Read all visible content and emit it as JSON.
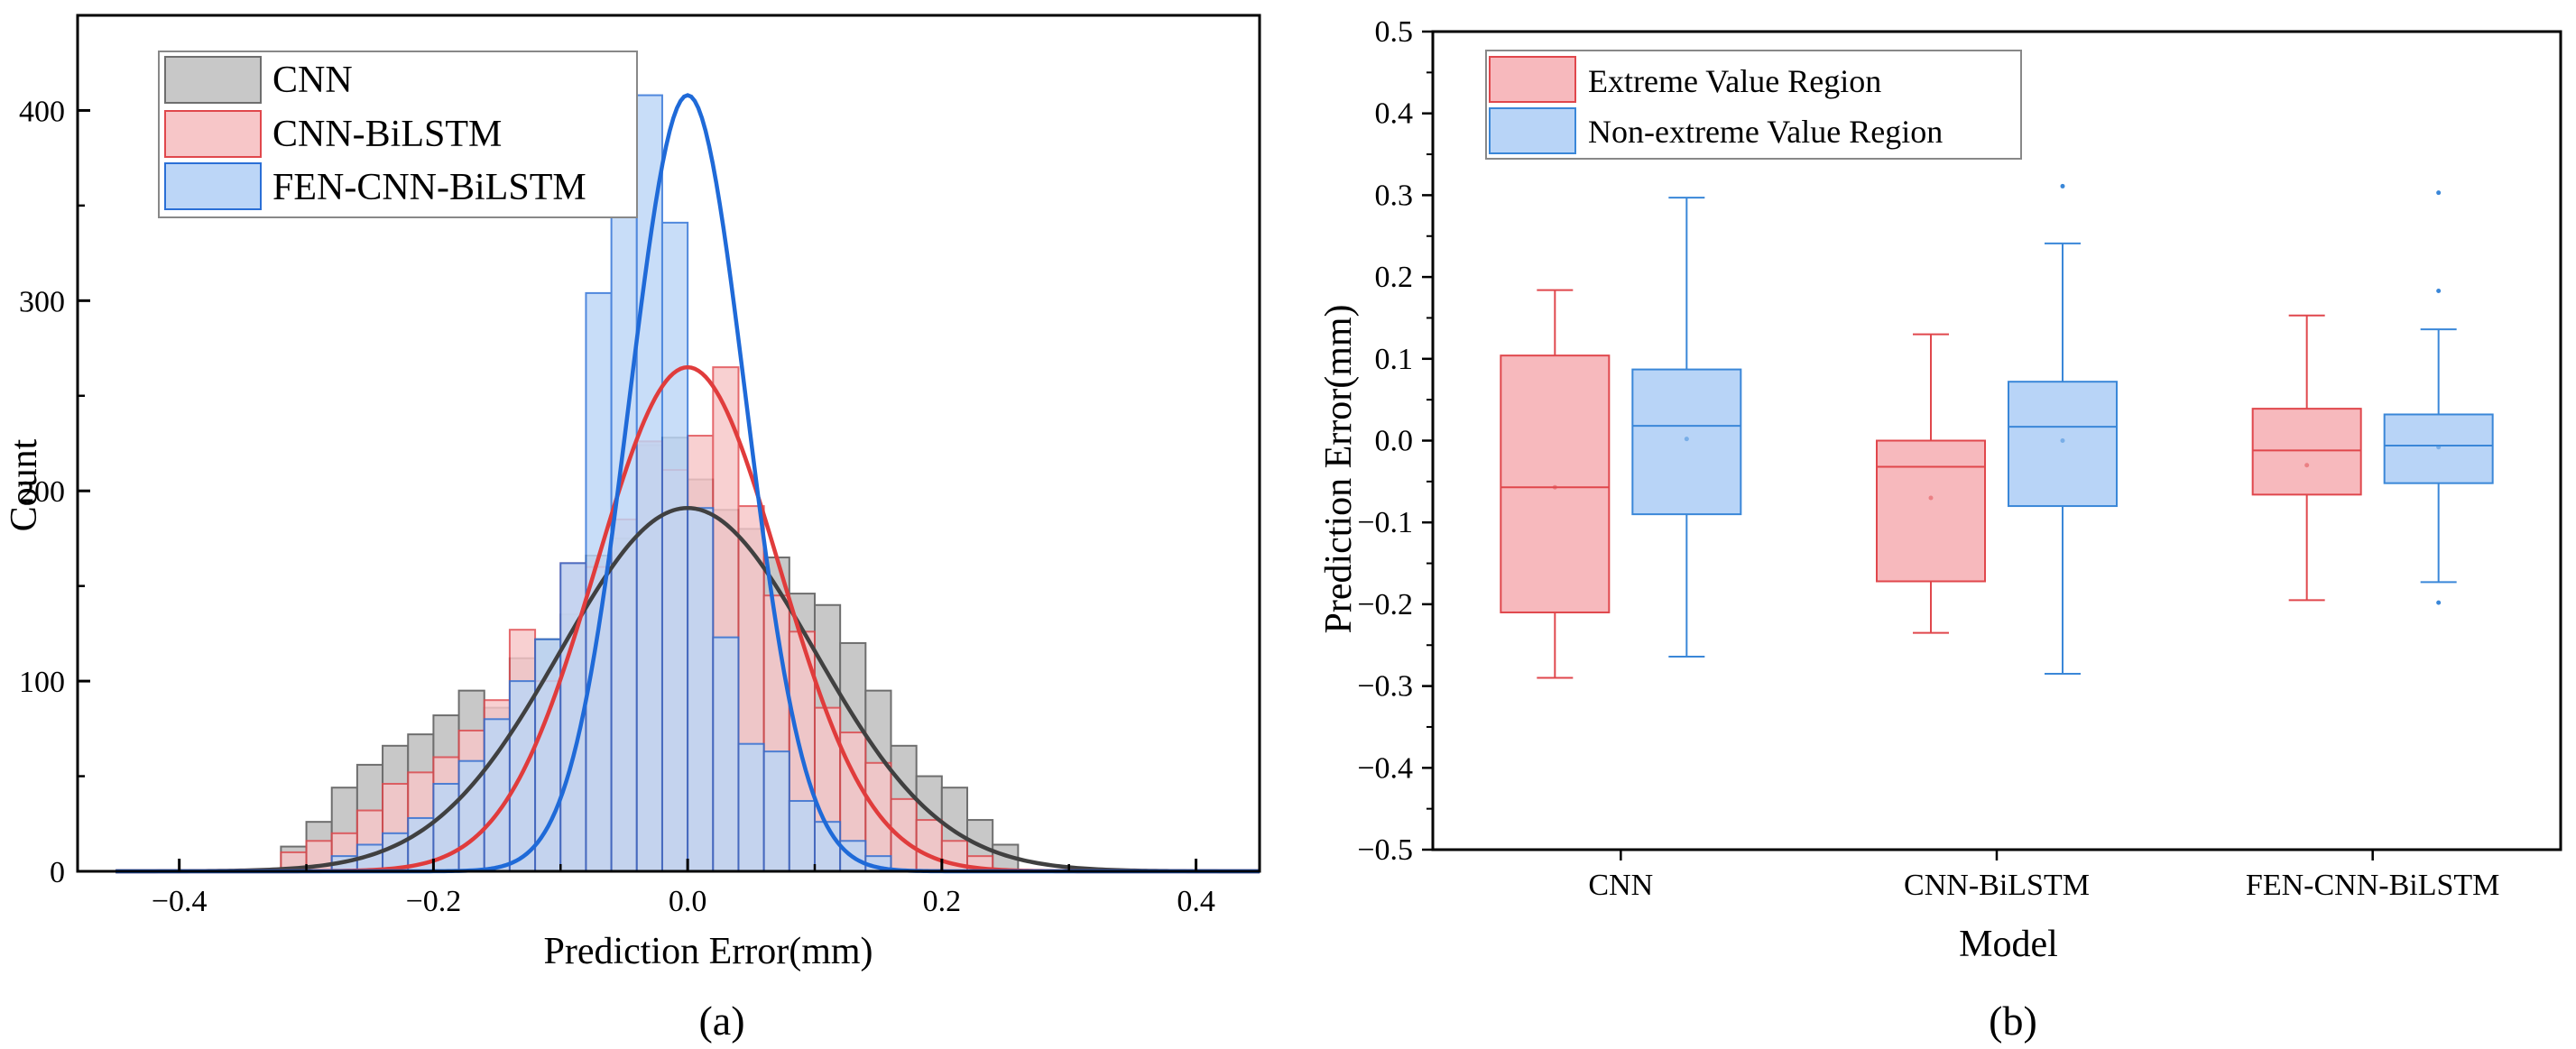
{
  "chart_data": [
    {
      "id": "a",
      "type": "histogram",
      "panel_label": "(a)",
      "xlabel": "Prediction Error(mm)",
      "ylabel": "Count",
      "xlim": [
        -0.48,
        0.45
      ],
      "ylim": [
        0,
        450
      ],
      "xticks": [
        -0.4,
        -0.2,
        0.0,
        0.2,
        0.4
      ],
      "xtick_labels": [
        "−0.4",
        "−0.2",
        "0.0",
        "0.2",
        "0.4"
      ],
      "yticks": [
        0,
        100,
        200,
        300,
        400
      ],
      "ytick_labels": [
        "0",
        "100",
        "200",
        "300",
        "400"
      ],
      "bin_width": 0.02,
      "legend_position": "top-left",
      "series": [
        {
          "name": "CNN",
          "fill": "#c8c8c8",
          "edge": "#6e6e6e",
          "curve": "#404040",
          "curve_mean": 0.0,
          "curve_sd": 0.1,
          "curve_peak": 191,
          "bins": [
            {
              "x0": -0.32,
              "count": 13
            },
            {
              "x0": -0.3,
              "count": 26
            },
            {
              "x0": -0.28,
              "count": 44
            },
            {
              "x0": -0.26,
              "count": 56
            },
            {
              "x0": -0.24,
              "count": 66
            },
            {
              "x0": -0.22,
              "count": 72
            },
            {
              "x0": -0.2,
              "count": 82
            },
            {
              "x0": -0.18,
              "count": 95
            },
            {
              "x0": -0.16,
              "count": 86
            },
            {
              "x0": -0.14,
              "count": 112
            },
            {
              "x0": -0.12,
              "count": 122
            },
            {
              "x0": -0.1,
              "count": 135
            },
            {
              "x0": -0.08,
              "count": 166
            },
            {
              "x0": -0.06,
              "count": 175
            },
            {
              "x0": -0.04,
              "count": 224
            },
            {
              "x0": -0.02,
              "count": 228
            },
            {
              "x0": 0.0,
              "count": 206
            },
            {
              "x0": 0.02,
              "count": 190
            },
            {
              "x0": 0.04,
              "count": 180
            },
            {
              "x0": 0.06,
              "count": 165
            },
            {
              "x0": 0.08,
              "count": 146
            },
            {
              "x0": 0.1,
              "count": 140
            },
            {
              "x0": 0.12,
              "count": 120
            },
            {
              "x0": 0.14,
              "count": 95
            },
            {
              "x0": 0.16,
              "count": 66
            },
            {
              "x0": 0.18,
              "count": 50
            },
            {
              "x0": 0.2,
              "count": 44
            },
            {
              "x0": 0.22,
              "count": 27
            },
            {
              "x0": 0.24,
              "count": 14
            }
          ]
        },
        {
          "name": "CNN-BiLSTM",
          "fill": "#f7c6c8",
          "edge": "#e0474c",
          "curve": "#e03c3c",
          "curve_mean": 0.0,
          "curve_sd": 0.072,
          "curve_peak": 265,
          "bins": [
            {
              "x0": -0.32,
              "count": 10
            },
            {
              "x0": -0.3,
              "count": 16
            },
            {
              "x0": -0.28,
              "count": 20
            },
            {
              "x0": -0.26,
              "count": 32
            },
            {
              "x0": -0.24,
              "count": 46
            },
            {
              "x0": -0.22,
              "count": 52
            },
            {
              "x0": -0.2,
              "count": 60
            },
            {
              "x0": -0.18,
              "count": 74
            },
            {
              "x0": -0.16,
              "count": 90
            },
            {
              "x0": -0.14,
              "count": 127
            },
            {
              "x0": -0.12,
              "count": 100
            },
            {
              "x0": -0.1,
              "count": 162
            },
            {
              "x0": -0.08,
              "count": 160
            },
            {
              "x0": -0.06,
              "count": 185
            },
            {
              "x0": -0.04,
              "count": 226
            },
            {
              "x0": -0.02,
              "count": 211
            },
            {
              "x0": 0.0,
              "count": 229
            },
            {
              "x0": 0.02,
              "count": 265
            },
            {
              "x0": 0.04,
              "count": 192
            },
            {
              "x0": 0.06,
              "count": 145
            },
            {
              "x0": 0.08,
              "count": 126
            },
            {
              "x0": 0.1,
              "count": 86
            },
            {
              "x0": 0.12,
              "count": 73
            },
            {
              "x0": 0.14,
              "count": 57
            },
            {
              "x0": 0.16,
              "count": 38
            },
            {
              "x0": 0.18,
              "count": 27
            },
            {
              "x0": 0.2,
              "count": 16
            },
            {
              "x0": 0.22,
              "count": 8
            }
          ]
        },
        {
          "name": "FEN-CNN-BiLSTM",
          "fill": "#bcd6f7",
          "edge": "#2a6fd6",
          "curve": "#1f6ad8",
          "curve_mean": 0.0,
          "curve_sd": 0.046,
          "curve_peak": 408,
          "bins": [
            {
              "x0": -0.28,
              "count": 8
            },
            {
              "x0": -0.26,
              "count": 14
            },
            {
              "x0": -0.24,
              "count": 20
            },
            {
              "x0": -0.22,
              "count": 28
            },
            {
              "x0": -0.2,
              "count": 46
            },
            {
              "x0": -0.18,
              "count": 58
            },
            {
              "x0": -0.16,
              "count": 80
            },
            {
              "x0": -0.14,
              "count": 100
            },
            {
              "x0": -0.12,
              "count": 122
            },
            {
              "x0": -0.1,
              "count": 162
            },
            {
              "x0": -0.08,
              "count": 304
            },
            {
              "x0": -0.06,
              "count": 389
            },
            {
              "x0": -0.04,
              "count": 408
            },
            {
              "x0": -0.02,
              "count": 341
            },
            {
              "x0": 0.0,
              "count": 191
            },
            {
              "x0": 0.02,
              "count": 123
            },
            {
              "x0": 0.04,
              "count": 67
            },
            {
              "x0": 0.06,
              "count": 63
            },
            {
              "x0": 0.08,
              "count": 37
            },
            {
              "x0": 0.1,
              "count": 26
            },
            {
              "x0": 0.12,
              "count": 16
            },
            {
              "x0": 0.14,
              "count": 8
            }
          ]
        }
      ]
    },
    {
      "id": "b",
      "type": "box",
      "panel_label": "(b)",
      "xlabel": "Model",
      "ylabel": "Prediction Error(mm)",
      "ylim": [
        -0.5,
        0.5
      ],
      "yticks": [
        -0.5,
        -0.4,
        -0.3,
        -0.2,
        -0.1,
        0.0,
        0.1,
        0.2,
        0.3,
        0.4,
        0.5
      ],
      "ytick_labels": [
        "−0.5",
        "−0.4",
        "−0.3",
        "−0.2",
        "−0.1",
        "0.0",
        "0.1",
        "0.2",
        "0.3",
        "0.4",
        "0.5"
      ],
      "categories": [
        "CNN",
        "CNN-BiLSTM",
        "FEN-CNN-BiLSTM"
      ],
      "legend_position": "top-left",
      "series": [
        {
          "name": "Extreme Value Region",
          "fill": "#f7b9bd",
          "edge": "#e0474c",
          "boxes": [
            {
              "whisker_low": -0.29,
              "q1": -0.21,
              "median": -0.057,
              "q3": 0.104,
              "whisker_high": 0.184,
              "mean": -0.057
            },
            {
              "whisker_low": -0.235,
              "q1": -0.172,
              "median": -0.032,
              "q3": 0.0,
              "whisker_high": 0.13,
              "mean": -0.07
            },
            {
              "whisker_low": -0.195,
              "q1": -0.066,
              "median": -0.012,
              "q3": 0.039,
              "whisker_high": 0.153,
              "mean": -0.03
            }
          ]
        },
        {
          "name": "Non-extreme Value Region",
          "fill": "#b8d4f7",
          "edge": "#3a87d8",
          "boxes": [
            {
              "whisker_low": -0.264,
              "q1": -0.09,
              "median": 0.018,
              "q3": 0.087,
              "whisker_high": 0.297,
              "mean": 0.002,
              "outliers": []
            },
            {
              "whisker_low": -0.285,
              "q1": -0.08,
              "median": 0.017,
              "q3": 0.072,
              "whisker_high": 0.241,
              "mean": 0.0,
              "outliers": [
                0.311
              ]
            },
            {
              "whisker_low": -0.173,
              "q1": -0.052,
              "median": -0.006,
              "q3": 0.032,
              "whisker_high": 0.136,
              "mean": -0.008,
              "outliers": [
                0.303,
                0.183,
                -0.198
              ]
            }
          ]
        }
      ]
    }
  ]
}
